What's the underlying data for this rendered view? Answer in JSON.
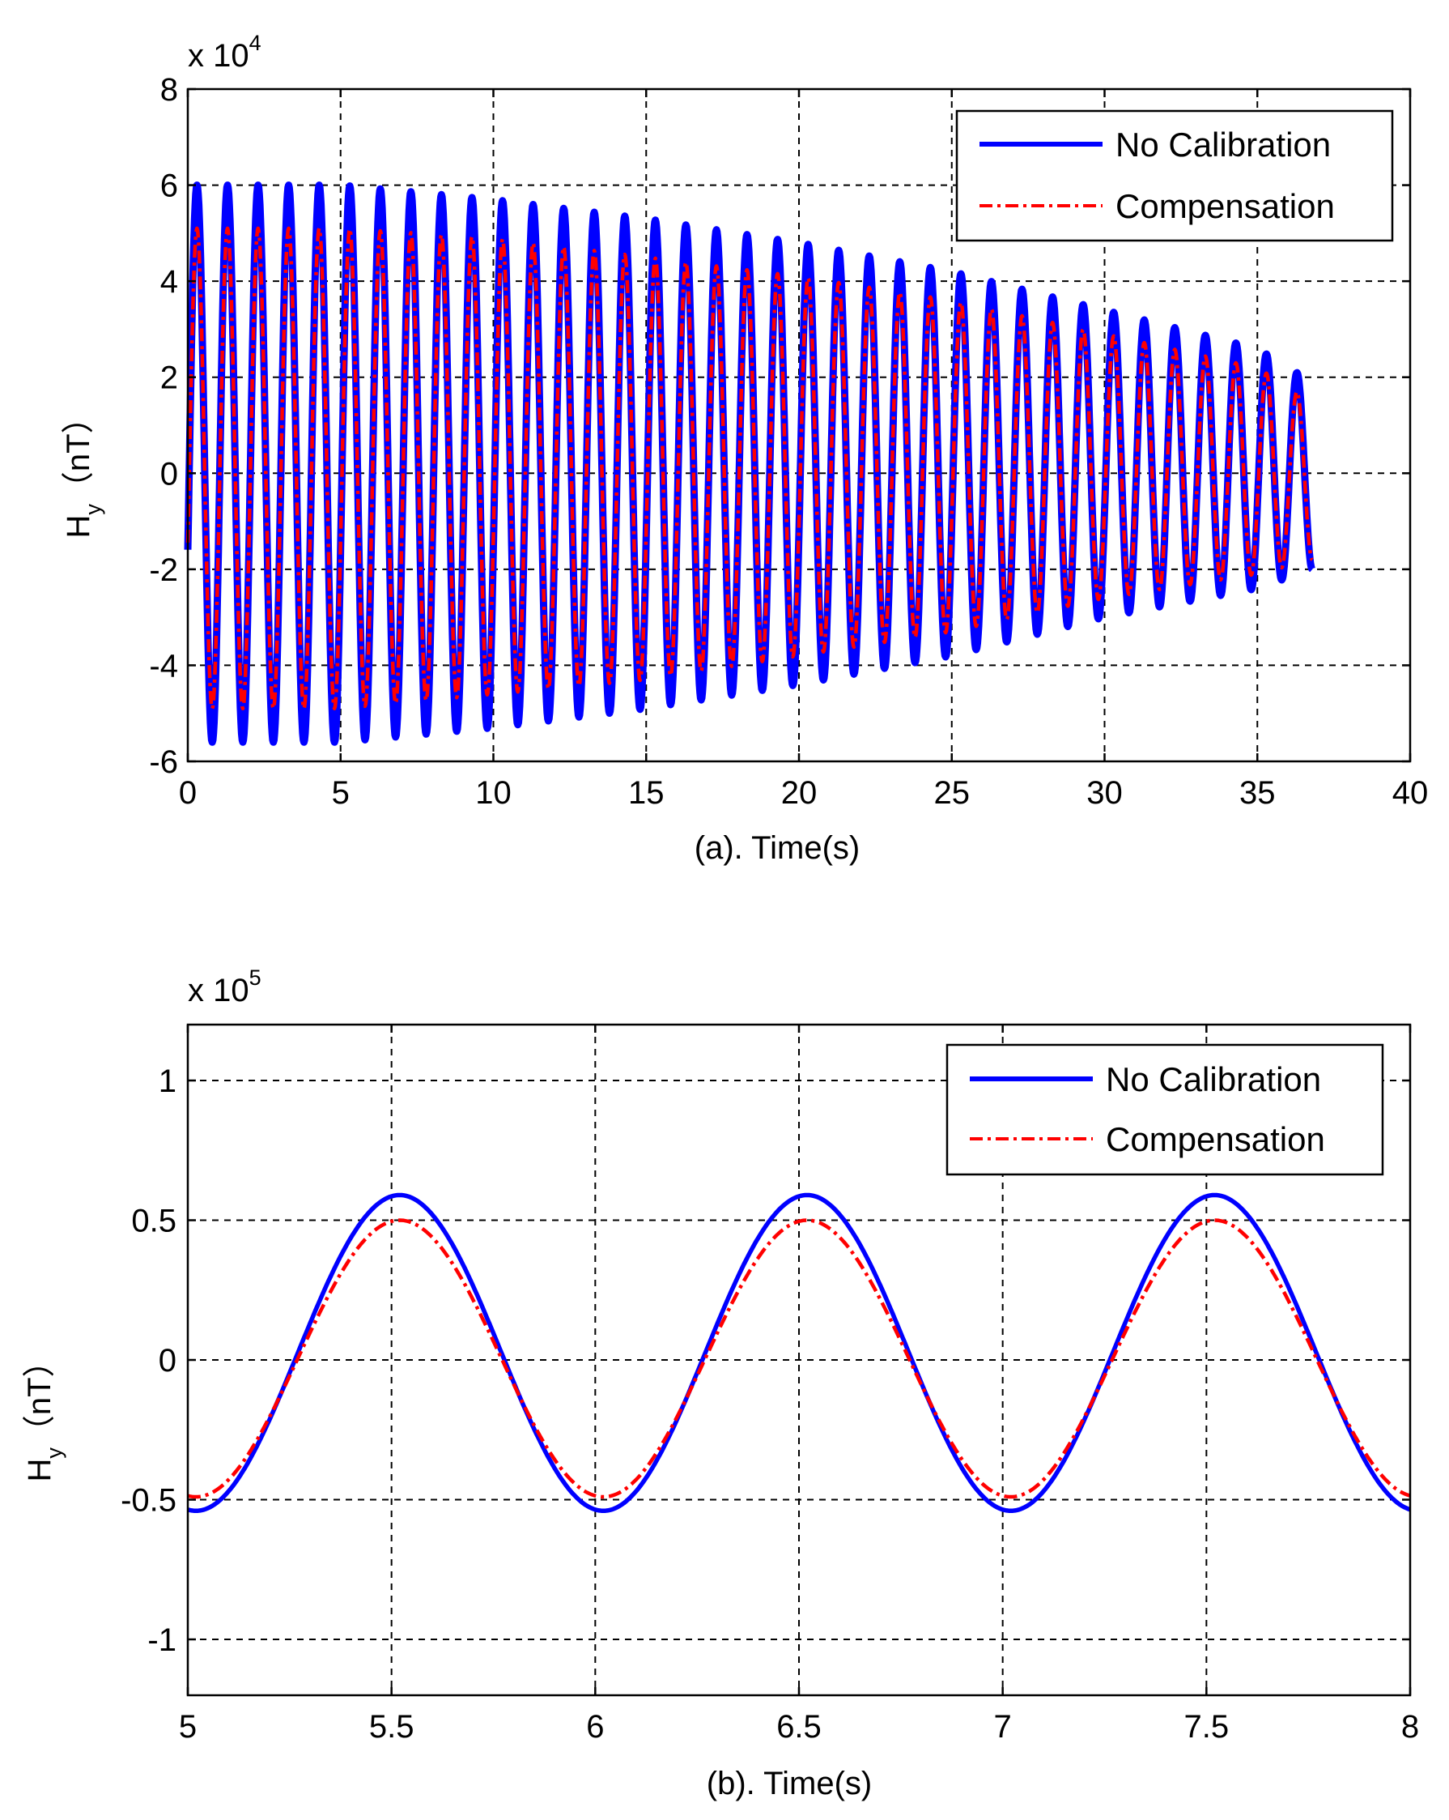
{
  "chart_data": [
    {
      "type": "line",
      "id": "a",
      "xlabel": "(a). Time(s)",
      "ylabel": "H",
      "ylabel_sub": "y",
      "ylabel_unit": "（nT）",
      "multiplier_base": "x 10",
      "multiplier_exp": "4",
      "xlim": [
        0,
        40
      ],
      "ylim": [
        -6,
        8
      ],
      "xticks": [
        0,
        5,
        10,
        15,
        20,
        25,
        30,
        35,
        40
      ],
      "yticks": [
        -6,
        -4,
        -2,
        0,
        2,
        4,
        6,
        8
      ],
      "xtick_labels": [
        "0",
        "5",
        "10",
        "15",
        "20",
        "25",
        "30",
        "35",
        "40"
      ],
      "ytick_labels": [
        "-6",
        "-4",
        "-2",
        "0",
        "2",
        "4",
        "6",
        "8"
      ],
      "grid": true,
      "legend_position": "top-right",
      "signal": {
        "period_s": 1.0,
        "phase_s": 0.05,
        "t_end_s": 36.8,
        "sample_step_s": 0.02
      },
      "series": [
        {
          "name": "No Calibration",
          "color": "#0000ff",
          "style": "solid",
          "envelope_t": [
            0,
            5,
            10,
            15,
            20,
            25,
            30,
            35,
            36.8
          ],
          "envelope_max": [
            6.0,
            6.0,
            5.7,
            5.3,
            4.8,
            4.2,
            3.4,
            2.6,
            1.9
          ],
          "envelope_min": [
            -5.6,
            -5.6,
            -5.3,
            -4.9,
            -4.4,
            -3.8,
            -3.0,
            -2.4,
            -2.0
          ]
        },
        {
          "name": "Compensation",
          "color": "#ff0000",
          "style": "dashdot",
          "envelope_t": [
            0,
            5,
            10,
            15,
            20,
            25,
            30,
            35,
            36.8
          ],
          "envelope_max": [
            5.1,
            5.1,
            4.9,
            4.5,
            4.1,
            3.6,
            2.9,
            2.2,
            1.5
          ],
          "envelope_min": [
            -4.9,
            -4.9,
            -4.6,
            -4.3,
            -3.8,
            -3.3,
            -2.6,
            -2.1,
            -1.8
          ]
        }
      ]
    },
    {
      "type": "line",
      "id": "b",
      "xlabel": "(b). Time(s)",
      "ylabel": "H",
      "ylabel_sub": "y",
      "ylabel_unit": "（nT）",
      "multiplier_base": "x 10",
      "multiplier_exp": "5",
      "xlim": [
        5,
        8
      ],
      "ylim": [
        -1.2,
        1.2
      ],
      "xticks": [
        5,
        5.5,
        6,
        6.5,
        7,
        7.5,
        8
      ],
      "yticks": [
        -1,
        -0.5,
        0,
        0.5,
        1
      ],
      "xtick_labels": [
        "5",
        "5.5",
        "6",
        "6.5",
        "7",
        "7.5",
        "8"
      ],
      "ytick_labels": [
        "-1",
        "-0.5",
        "0",
        "0.5",
        "1"
      ],
      "grid": true,
      "legend_position": "top-right",
      "signal": {
        "period_s": 1.0,
        "peak_t_s": 5.52,
        "sample_step_s": 0.005
      },
      "series": [
        {
          "name": "No Calibration",
          "color": "#0000ff",
          "style": "solid",
          "peak": 0.59,
          "trough": -0.54
        },
        {
          "name": "Compensation",
          "color": "#ff0000",
          "style": "dashdot",
          "peak": 0.5,
          "trough": -0.49
        }
      ]
    }
  ]
}
